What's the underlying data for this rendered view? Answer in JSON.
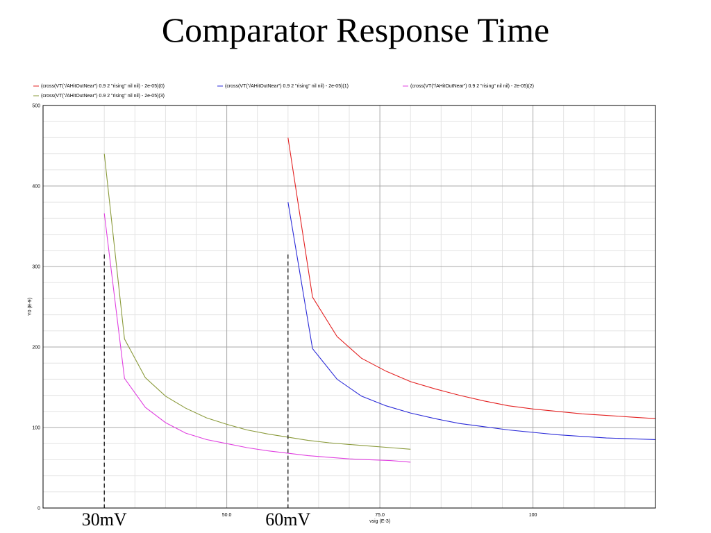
{
  "slide": {
    "title": "Comparator Response Time"
  },
  "chart_data": {
    "type": "line",
    "title": "",
    "xlabel": "vsig (E-3)",
    "ylabel": "Y0 (E-9)",
    "xlim": [
      20,
      120
    ],
    "ylim": [
      0,
      500
    ],
    "x_ticks": [
      {
        "value": 50,
        "label": "50.0"
      },
      {
        "value": 75,
        "label": "75.0"
      },
      {
        "value": 100,
        "label": "100"
      }
    ],
    "y_ticks": [
      {
        "value": 0,
        "label": "0"
      },
      {
        "value": 100,
        "label": "100"
      },
      {
        "value": 200,
        "label": "200"
      },
      {
        "value": 300,
        "label": "300"
      },
      {
        "value": 400,
        "label": "400"
      },
      {
        "value": 500,
        "label": "500"
      }
    ],
    "grid": true,
    "legend_position": "top",
    "series": [
      {
        "name": "(cross(VT(\"/AHitOutNear\") 0.9 2 \"rising\" nil nil) - 2e-05)(0)",
        "color": "#e32020",
        "x": [
          60,
          64,
          68,
          72,
          76,
          80,
          84,
          88,
          92,
          96,
          100,
          104,
          108,
          112,
          116,
          120
        ],
        "y": [
          460,
          262,
          213,
          186,
          170,
          157,
          148,
          140,
          133,
          127,
          123,
          120,
          117,
          115,
          113,
          111
        ]
      },
      {
        "name": "(cross(VT(\"/AHitOutNear\") 0.9 2 \"rising\" nil nil) - 2e-05)(1)",
        "color": "#2a2ad8",
        "x": [
          60,
          64,
          68,
          72,
          76,
          80,
          84,
          88,
          92,
          96,
          100,
          104,
          108,
          112,
          116,
          120
        ],
        "y": [
          380,
          198,
          160,
          139,
          127,
          118,
          111,
          105,
          101,
          97,
          94,
          91,
          89,
          87,
          86,
          85
        ]
      },
      {
        "name": "(cross(VT(\"/AHitOutNear\") 0.9 2 \"rising\" nil nil) - 2e-05)(2)",
        "color": "#e040e0",
        "x": [
          30,
          33.3,
          36.7,
          40,
          43.3,
          46.7,
          50,
          53.3,
          56.7,
          60,
          63.3,
          66.7,
          70,
          73.3,
          76.7,
          80
        ],
        "y": [
          366,
          161,
          125,
          106,
          93,
          85,
          80,
          75,
          71,
          68,
          65,
          63,
          61,
          60,
          59,
          57
        ]
      },
      {
        "name": "(cross(VT(\"/AHitOutNear\") 0.9 2 \"rising\" nil nil) - 2e-05)(3)",
        "color": "#8a9a3a",
        "x": [
          30,
          33.3,
          36.7,
          40,
          43.3,
          46.7,
          50,
          53.3,
          56.7,
          60,
          63.3,
          66.7,
          70,
          73.3,
          76.7,
          80
        ],
        "y": [
          440,
          210,
          162,
          139,
          124,
          112,
          104,
          97,
          92,
          88,
          84,
          81,
          79,
          77,
          75,
          73
        ]
      }
    ],
    "annotations": [
      {
        "text": "30mV",
        "x": 30
      },
      {
        "text": "60mV",
        "x": 60
      }
    ]
  }
}
